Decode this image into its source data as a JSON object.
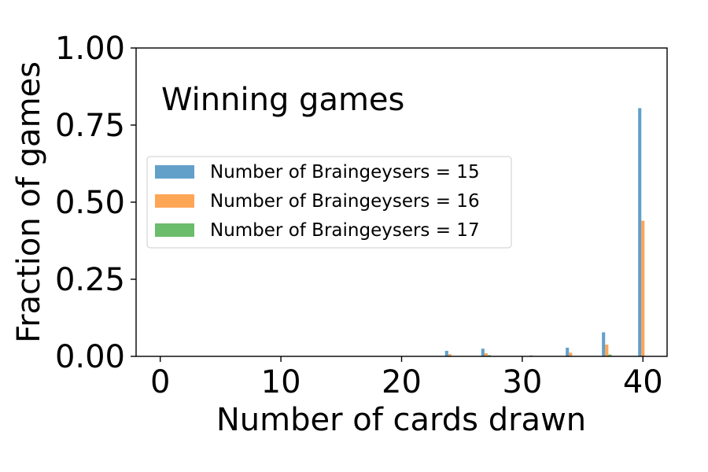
{
  "chart_data": {
    "type": "bar",
    "title": "",
    "annotation": "Winning games",
    "xlabel": "Number of cards drawn",
    "ylabel": "Fraction of games",
    "xlim": [
      -2,
      42
    ],
    "ylim": [
      0,
      1.0
    ],
    "xticks": [
      0,
      10,
      20,
      30,
      40
    ],
    "xtick_labels": [
      "0",
      "10",
      "20",
      "30",
      "40"
    ],
    "yticks": [
      0,
      0.25,
      0.5,
      0.75,
      1.0
    ],
    "ytick_labels": [
      "0.00",
      "0.25",
      "0.50",
      "0.75",
      "1.00"
    ],
    "grid": false,
    "legend_position": "center-left",
    "bar_width": 0.8,
    "series": [
      {
        "name": "Number of Braingeysers = 15",
        "color": "#1f77b4",
        "opacity": 0.7,
        "x": [
          24,
          27,
          31,
          34,
          37,
          40
        ],
        "values": [
          0.018,
          0.025,
          0.003,
          0.028,
          0.078,
          0.805
        ]
      },
      {
        "name": "Number of Braingeysers = 16",
        "color": "#ff7f0e",
        "opacity": 0.7,
        "x": [
          24,
          27,
          34,
          37,
          40
        ],
        "values": [
          0.007,
          0.01,
          0.012,
          0.038,
          0.44
        ]
      },
      {
        "name": "Number of Braingeysers = 17",
        "color": "#2ca02c",
        "opacity": 0.7,
        "x": [
          27,
          37
        ],
        "values": [
          0.004,
          0.006
        ]
      }
    ]
  }
}
